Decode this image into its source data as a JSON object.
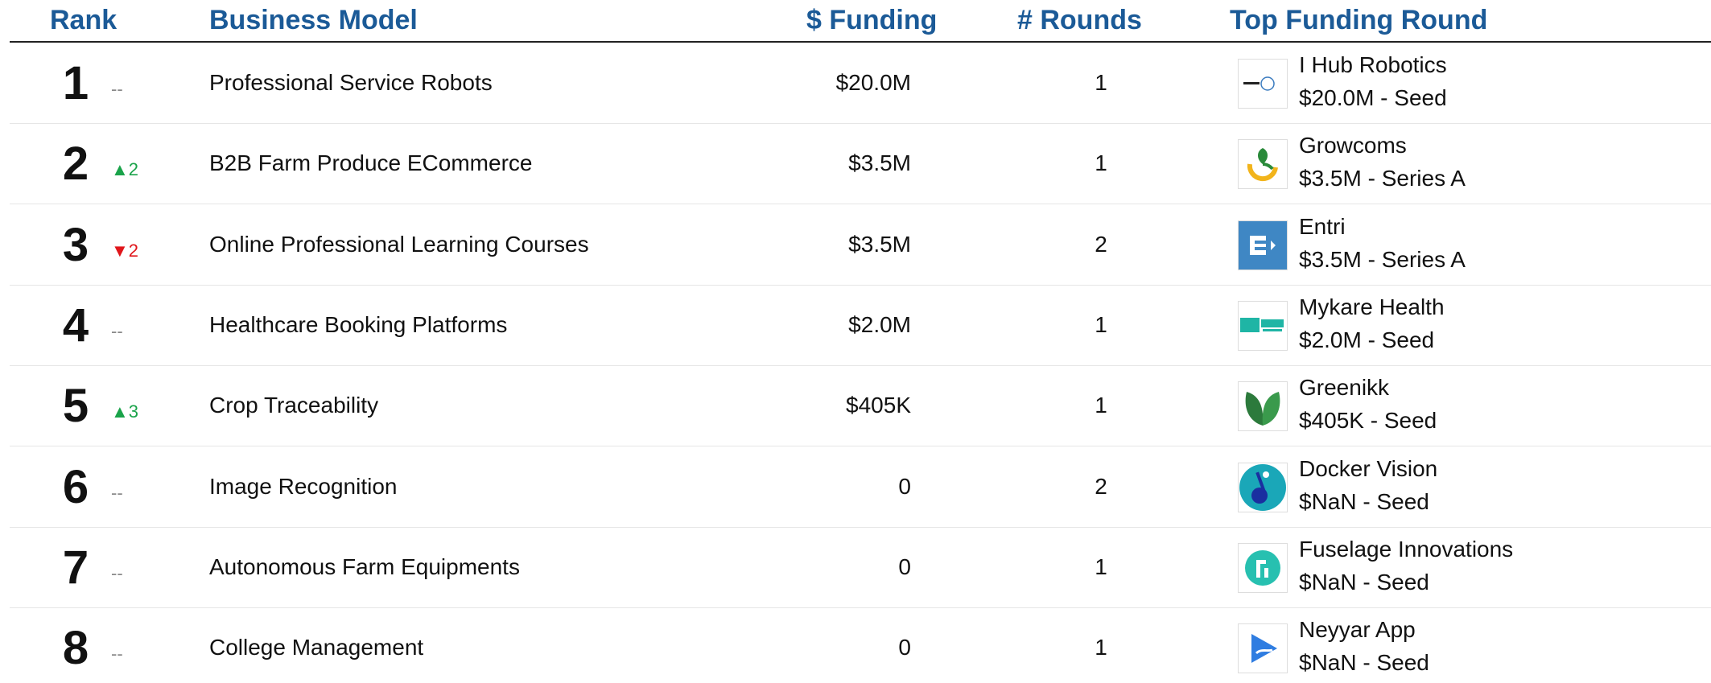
{
  "table": {
    "header": [
      "Rank",
      "Business Model",
      "$ Funding",
      "# Rounds",
      "Top Funding Round"
    ],
    "rows": [
      {
        "rank": 1,
        "change": "--",
        "model": "Professional Service Robots",
        "funding": "$20.0M",
        "rounds": 1,
        "company": "I Hub Robotics",
        "round": "$20.0M - Seed"
      },
      {
        "rank": 2,
        "change": "▲2",
        "model": "B2B Farm Produce ECommerce",
        "funding": "$3.5M",
        "rounds": 1,
        "company": "Growcoms",
        "round": "$3.5M - Series A"
      },
      {
        "rank": 3,
        "change": "▼2",
        "model": "Online Professional Learning Courses",
        "funding": "$3.5M",
        "rounds": 2,
        "company": "Entri",
        "round": "$3.5M - Series A"
      },
      {
        "rank": 4,
        "change": "--",
        "model": "Healthcare Booking Platforms",
        "funding": "$2.0M",
        "rounds": 1,
        "company": "Mykare Health",
        "round": "$2.0M - Seed"
      },
      {
        "rank": 5,
        "change": "▲3",
        "model": "Crop Traceability",
        "funding": "$405K",
        "rounds": 1,
        "company": "Greenikk",
        "round": "$405K - Seed"
      },
      {
        "rank": 6,
        "change": "--",
        "model": "Image Recognition",
        "funding": "0",
        "rounds": 2,
        "company": "Docker Vision",
        "round": "$NaN - Seed"
      },
      {
        "rank": 7,
        "change": "--",
        "model": "Autonomous Farm Equipments",
        "funding": "0",
        "rounds": 1,
        "company": "Fuselage Innovations",
        "round": "$NaN - Seed"
      },
      {
        "rank": 8,
        "change": "--",
        "model": "College Management",
        "funding": "0",
        "rounds": 1,
        "company": "Neyyar App",
        "round": "$NaN - Seed"
      }
    ]
  }
}
